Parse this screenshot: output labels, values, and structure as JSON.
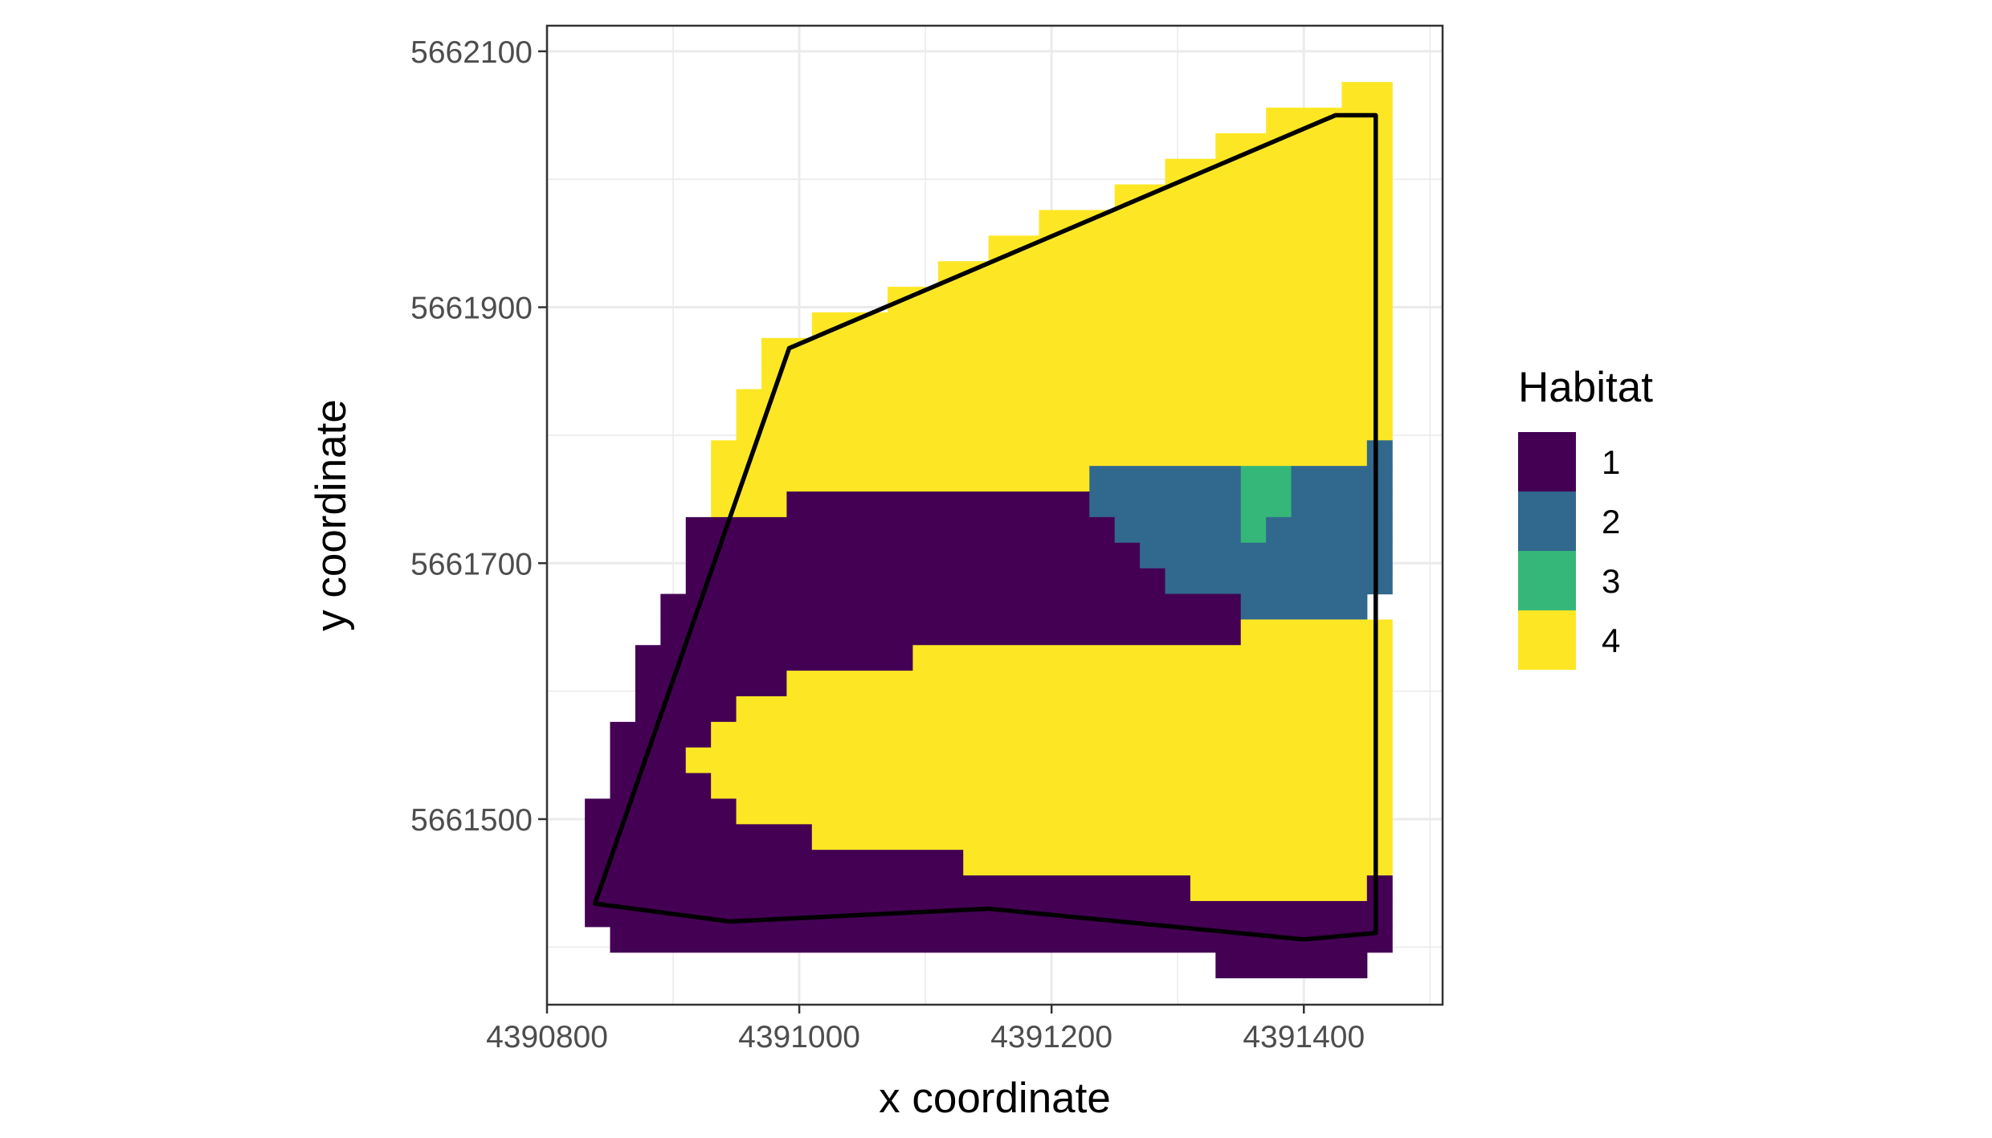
{
  "chart_data": {
    "type": "heatmap",
    "title": "",
    "xlabel": "x coordinate",
    "ylabel": "y coordinate",
    "xlim": [
      4390800,
      4391510
    ],
    "ylim": [
      5661355,
      5662120
    ],
    "x_ticks": [
      4390800,
      4391000,
      4391200,
      4391400
    ],
    "y_ticks": [
      5661500,
      5661700,
      5661900,
      5662100
    ],
    "x_tick_labels": [
      "4390800",
      "4391000",
      "4391200",
      "4391400"
    ],
    "y_tick_labels": [
      "5661500",
      "5661700",
      "5661900",
      "5662100"
    ],
    "grid": true,
    "cell_size": 20,
    "grid_origin": {
      "x_min": 4390830,
      "y_max": 5662076
    },
    "legend": {
      "title": "Habitat",
      "position": "right",
      "entries": [
        {
          "value": 1,
          "label": "1",
          "color": "#440154"
        },
        {
          "value": 2,
          "label": "2",
          "color": "#31688E"
        },
        {
          "value": 3,
          "label": "3",
          "color": "#35B779"
        },
        {
          "value": 4,
          "label": "4",
          "color": "#FDE725"
        }
      ]
    },
    "raster_rows": [
      [
        {
          "x0": 4391430,
          "x1": 4391470,
          "value": 4
        }
      ],
      [
        {
          "x0": 4391370,
          "x1": 4391470,
          "value": 4
        }
      ],
      [
        {
          "x0": 4391330,
          "x1": 4391470,
          "value": 4
        }
      ],
      [
        {
          "x0": 4391290,
          "x1": 4391470,
          "value": 4
        }
      ],
      [
        {
          "x0": 4391250,
          "x1": 4391470,
          "value": 4
        }
      ],
      [
        {
          "x0": 4391190,
          "x1": 4391470,
          "value": 4
        }
      ],
      [
        {
          "x0": 4391150,
          "x1": 4391470,
          "value": 4
        }
      ],
      [
        {
          "x0": 4391110,
          "x1": 4391470,
          "value": 4
        }
      ],
      [
        {
          "x0": 4391070,
          "x1": 4391470,
          "value": 4
        }
      ],
      [
        {
          "x0": 4391010,
          "x1": 4391470,
          "value": 4
        }
      ],
      [
        {
          "x0": 4390970,
          "x1": 4391470,
          "value": 4
        }
      ],
      [
        {
          "x0": 4390970,
          "x1": 4391470,
          "value": 4
        }
      ],
      [
        {
          "x0": 4390950,
          "x1": 4391470,
          "value": 4
        }
      ],
      [
        {
          "x0": 4390950,
          "x1": 4391470,
          "value": 4
        }
      ],
      [
        {
          "x0": 4390930,
          "x1": 4391450,
          "value": 4
        },
        {
          "x0": 4391450,
          "x1": 4391470,
          "value": 2
        }
      ],
      [
        {
          "x0": 4390930,
          "x1": 4391230,
          "value": 4
        },
        {
          "x0": 4391230,
          "x1": 4391350,
          "value": 2
        },
        {
          "x0": 4391350,
          "x1": 4391390,
          "value": 3
        },
        {
          "x0": 4391390,
          "x1": 4391470,
          "value": 2
        }
      ],
      [
        {
          "x0": 4390930,
          "x1": 4390990,
          "value": 4
        },
        {
          "x0": 4390990,
          "x1": 4391230,
          "value": 1
        },
        {
          "x0": 4391230,
          "x1": 4391350,
          "value": 2
        },
        {
          "x0": 4391350,
          "x1": 4391390,
          "value": 3
        },
        {
          "x0": 4391390,
          "x1": 4391470,
          "value": 2
        }
      ],
      [
        {
          "x0": 4390910,
          "x1": 4391250,
          "value": 1
        },
        {
          "x0": 4391250,
          "x1": 4391350,
          "value": 2
        },
        {
          "x0": 4391350,
          "x1": 4391370,
          "value": 3
        },
        {
          "x0": 4391370,
          "x1": 4391470,
          "value": 2
        }
      ],
      [
        {
          "x0": 4390910,
          "x1": 4391270,
          "value": 1
        },
        {
          "x0": 4391270,
          "x1": 4391470,
          "value": 2
        }
      ],
      [
        {
          "x0": 4390910,
          "x1": 4391290,
          "value": 1
        },
        {
          "x0": 4391290,
          "x1": 4391470,
          "value": 2
        }
      ],
      [
        {
          "x0": 4390890,
          "x1": 4391350,
          "value": 1
        },
        {
          "x0": 4391350,
          "x1": 4391450,
          "value": 2
        }
      ],
      [
        {
          "x0": 4390890,
          "x1": 4391350,
          "value": 1
        },
        {
          "x0": 4391350,
          "x1": 4391470,
          "value": 4
        }
      ],
      [
        {
          "x0": 4390870,
          "x1": 4391090,
          "value": 1
        },
        {
          "x0": 4391090,
          "x1": 4391470,
          "value": 4
        }
      ],
      [
        {
          "x0": 4390870,
          "x1": 4390990,
          "value": 1
        },
        {
          "x0": 4390990,
          "x1": 4391470,
          "value": 4
        }
      ],
      [
        {
          "x0": 4390870,
          "x1": 4390950,
          "value": 1
        },
        {
          "x0": 4390950,
          "x1": 4391470,
          "value": 4
        }
      ],
      [
        {
          "x0": 4390850,
          "x1": 4390930,
          "value": 1
        },
        {
          "x0": 4390930,
          "x1": 4391470,
          "value": 4
        }
      ],
      [
        {
          "x0": 4390850,
          "x1": 4390910,
          "value": 1
        },
        {
          "x0": 4390910,
          "x1": 4391470,
          "value": 4
        }
      ],
      [
        {
          "x0": 4390850,
          "x1": 4390930,
          "value": 1
        },
        {
          "x0": 4390930,
          "x1": 4391470,
          "value": 4
        }
      ],
      [
        {
          "x0": 4390830,
          "x1": 4390950,
          "value": 1
        },
        {
          "x0": 4390950,
          "x1": 4391470,
          "value": 4
        }
      ],
      [
        {
          "x0": 4390830,
          "x1": 4391010,
          "value": 1
        },
        {
          "x0": 4391010,
          "x1": 4391470,
          "value": 4
        }
      ],
      [
        {
          "x0": 4390830,
          "x1": 4391130,
          "value": 1
        },
        {
          "x0": 4391130,
          "x1": 4391470,
          "value": 4
        }
      ],
      [
        {
          "x0": 4390830,
          "x1": 4391310,
          "value": 1
        },
        {
          "x0": 4391310,
          "x1": 4391450,
          "value": 4
        },
        {
          "x0": 4391450,
          "x1": 4391470,
          "value": 1
        }
      ],
      [
        {
          "x0": 4390830,
          "x1": 4391470,
          "value": 1
        }
      ],
      [
        {
          "x0": 4390850,
          "x1": 4391470,
          "value": 1
        }
      ],
      [
        {
          "x0": 4391330,
          "x1": 4391450,
          "value": 1
        }
      ]
    ],
    "boundary": {
      "name": "",
      "points": [
        [
          4391425,
          5662050
        ],
        [
          4391457,
          5662050
        ],
        [
          4391457,
          5661411
        ],
        [
          4391400,
          5661406
        ],
        [
          4391150,
          5661430
        ],
        [
          4390945,
          5661420
        ],
        [
          4390838,
          5661434
        ],
        [
          4390992,
          5661868
        ],
        [
          4391425,
          5662050
        ]
      ]
    }
  }
}
